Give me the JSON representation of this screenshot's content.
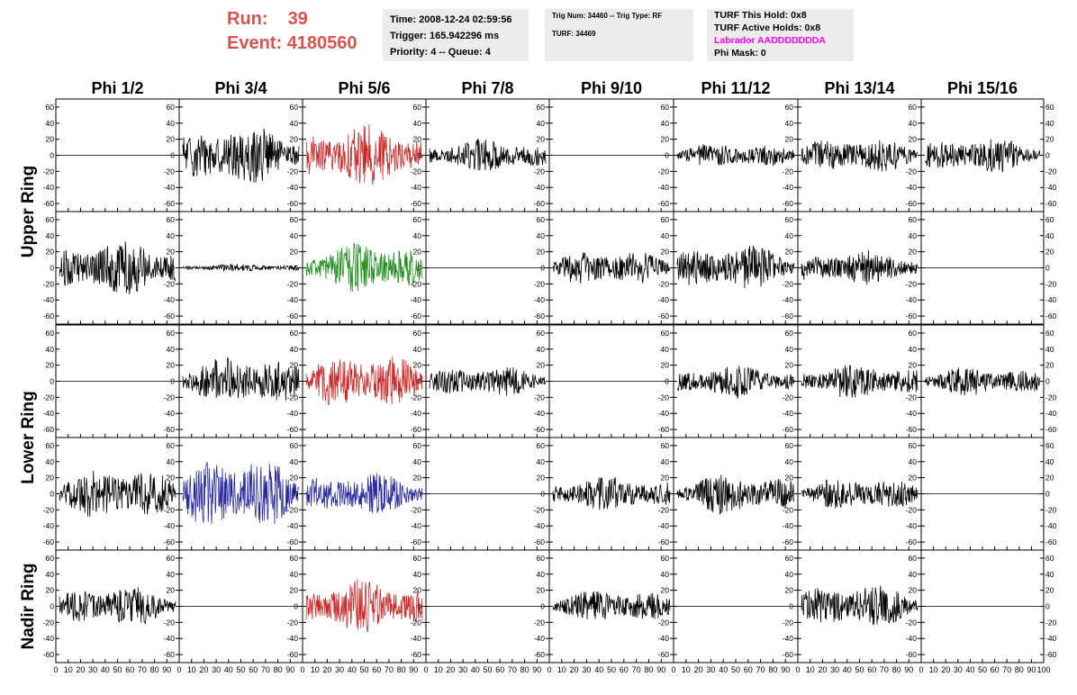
{
  "header": {
    "run_label": "Run:",
    "run_value": "39",
    "event_label": "Event:",
    "event_value": "4180560"
  },
  "info_time": {
    "line1": "Time: 2008-12-24 02:59:56",
    "line2": "Trigger: 165.942296 ms",
    "line3": "Priority: 4 -- Queue: 4"
  },
  "info_trig": {
    "line1": "Trig Num: 34460 -- Trig Type: RF",
    "line2": "TURF: 34469"
  },
  "info_turf": {
    "line1": "TURF This Hold: 0x8",
    "line2": "TURF Active Holds: 0x8",
    "line3": "Labrador AADDDDDDDA",
    "line4": "Phi Mask: 0"
  },
  "colors": {
    "header_red": "#d9534f",
    "magenta": "#ff00ff",
    "trace_black": "#000000",
    "trace_red": "#cc2a2a",
    "trace_green": "#1f8f1f",
    "trace_blue": "#2a2aa0"
  },
  "chart_data": {
    "type": "line",
    "columns": [
      "Phi 1/2",
      "Phi 3/4",
      "Phi 5/6",
      "Phi 7/8",
      "Phi 9/10",
      "Phi 11/12",
      "Phi 13/14",
      "Phi 15/16"
    ],
    "ring_labels": [
      "Upper Ring",
      "Lower Ring",
      "Nadir Ring"
    ],
    "ylim": [
      -70,
      70
    ],
    "yticks": [
      -60,
      -40,
      -20,
      0,
      20,
      40,
      60
    ],
    "xlim": [
      0,
      100
    ],
    "xtick_labels": [
      "0",
      "10",
      "20",
      "30",
      "40",
      "50",
      "60",
      "70",
      "80",
      "90",
      "100"
    ],
    "x_axis_label_rows": 1,
    "grid": false,
    "panels": [
      {
        "row": 0,
        "col": 0,
        "amp": 0,
        "color": "black"
      },
      {
        "row": 0,
        "col": 1,
        "amp": 24,
        "color": "black"
      },
      {
        "row": 0,
        "col": 2,
        "amp": 24,
        "color": "red"
      },
      {
        "row": 0,
        "col": 3,
        "amp": 13,
        "color": "black"
      },
      {
        "row": 0,
        "col": 4,
        "amp": 0,
        "color": "black"
      },
      {
        "row": 0,
        "col": 5,
        "amp": 10,
        "color": "black"
      },
      {
        "row": 0,
        "col": 6,
        "amp": 14,
        "color": "black"
      },
      {
        "row": 0,
        "col": 7,
        "amp": 14,
        "color": "black"
      },
      {
        "row": 1,
        "col": 0,
        "amp": 22,
        "color": "black"
      },
      {
        "row": 1,
        "col": 1,
        "amp": 3,
        "color": "black"
      },
      {
        "row": 1,
        "col": 2,
        "amp": 20,
        "color": "green"
      },
      {
        "row": 1,
        "col": 3,
        "amp": 0,
        "color": "black"
      },
      {
        "row": 1,
        "col": 4,
        "amp": 14,
        "color": "black"
      },
      {
        "row": 1,
        "col": 5,
        "amp": 18,
        "color": "black"
      },
      {
        "row": 1,
        "col": 6,
        "amp": 14,
        "color": "black"
      },
      {
        "row": 1,
        "col": 7,
        "amp": 0,
        "color": "black"
      },
      {
        "row": 2,
        "col": 0,
        "amp": 0,
        "color": "black"
      },
      {
        "row": 2,
        "col": 1,
        "amp": 20,
        "color": "black"
      },
      {
        "row": 2,
        "col": 2,
        "amp": 22,
        "color": "red"
      },
      {
        "row": 2,
        "col": 3,
        "amp": 12,
        "color": "black"
      },
      {
        "row": 2,
        "col": 4,
        "amp": 0,
        "color": "black"
      },
      {
        "row": 2,
        "col": 5,
        "amp": 13,
        "color": "black"
      },
      {
        "row": 2,
        "col": 6,
        "amp": 14,
        "color": "black"
      },
      {
        "row": 2,
        "col": 7,
        "amp": 12,
        "color": "black"
      },
      {
        "row": 3,
        "col": 0,
        "amp": 20,
        "color": "black"
      },
      {
        "row": 3,
        "col": 1,
        "amp": 30,
        "color": "blue"
      },
      {
        "row": 3,
        "col": 2,
        "amp": 17,
        "color": "blue"
      },
      {
        "row": 3,
        "col": 3,
        "amp": 0,
        "color": "black"
      },
      {
        "row": 3,
        "col": 4,
        "amp": 14,
        "color": "black"
      },
      {
        "row": 3,
        "col": 5,
        "amp": 16,
        "color": "black"
      },
      {
        "row": 3,
        "col": 6,
        "amp": 13,
        "color": "black"
      },
      {
        "row": 3,
        "col": 7,
        "amp": 0,
        "color": "black"
      },
      {
        "row": 4,
        "col": 0,
        "amp": 16,
        "color": "black"
      },
      {
        "row": 4,
        "col": 1,
        "amp": 0,
        "color": "black"
      },
      {
        "row": 4,
        "col": 2,
        "amp": 22,
        "color": "red"
      },
      {
        "row": 4,
        "col": 3,
        "amp": 0,
        "color": "black"
      },
      {
        "row": 4,
        "col": 4,
        "amp": 13,
        "color": "black"
      },
      {
        "row": 4,
        "col": 5,
        "amp": 0,
        "color": "black"
      },
      {
        "row": 4,
        "col": 6,
        "amp": 18,
        "color": "black"
      },
      {
        "row": 4,
        "col": 7,
        "amp": 0,
        "color": "black"
      }
    ]
  }
}
